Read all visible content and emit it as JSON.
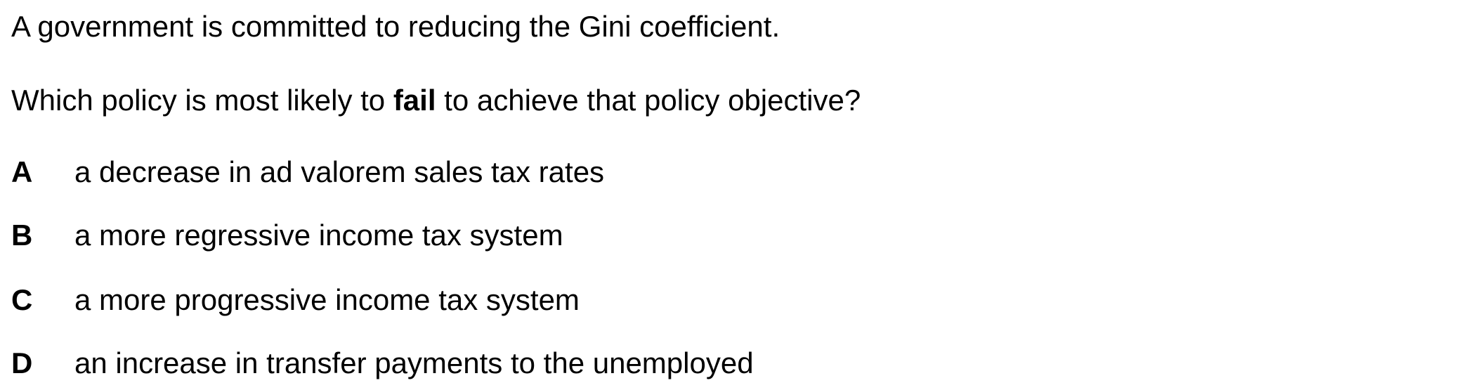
{
  "question": {
    "stem": "A government is committed to reducing the Gini coefficient.",
    "prompt_before": "Which policy is most likely to ",
    "prompt_emphasis": "fail",
    "prompt_after": " to achieve that policy objective?"
  },
  "options": [
    {
      "letter": "A",
      "text": "a decrease in ad valorem sales tax rates"
    },
    {
      "letter": "B",
      "text": "a more regressive income tax system"
    },
    {
      "letter": "C",
      "text": "a more progressive income tax system"
    },
    {
      "letter": "D",
      "text": "an increase in transfer payments to the unemployed"
    }
  ]
}
